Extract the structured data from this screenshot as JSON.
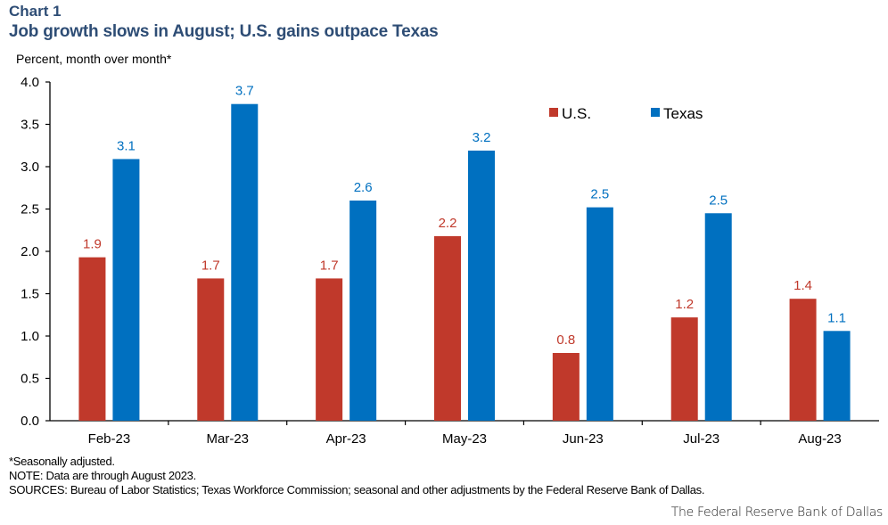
{
  "header": {
    "chart_label": "Chart 1",
    "title": "Job growth slows in August; U.S. gains outpace Texas",
    "unit_label": "Percent, month over month*"
  },
  "chart_data": {
    "type": "bar",
    "title": "Job growth slows in August; U.S. gains outpace Texas",
    "xlabel": "",
    "ylabel": "Percent, month over month*",
    "ylim": [
      0,
      4.0
    ],
    "yticks": [
      "0.0",
      "0.5",
      "1.0",
      "1.5",
      "2.0",
      "2.5",
      "3.0",
      "3.5",
      "4.0"
    ],
    "grid": false,
    "legend_position": "top-right",
    "categories": [
      "Feb-23",
      "Mar-23",
      "Apr-23",
      "May-23",
      "Jun-23",
      "Jul-23",
      "Aug-23"
    ],
    "series": [
      {
        "name": "U.S.",
        "color": "#c0392b",
        "values": [
          1.93,
          1.68,
          1.68,
          2.18,
          0.8,
          1.22,
          1.44
        ],
        "labels": [
          "1.9",
          "1.7",
          "1.7",
          "2.2",
          "0.8",
          "1.2",
          "1.4"
        ]
      },
      {
        "name": "Texas",
        "color": "#0070c0",
        "values": [
          3.09,
          3.74,
          2.6,
          3.19,
          2.52,
          2.45,
          1.06
        ],
        "labels": [
          "3.1",
          "3.7",
          "2.6",
          "3.2",
          "2.5",
          "2.5",
          "1.1"
        ]
      }
    ]
  },
  "footer": {
    "footnote": "*Seasonally adjusted.",
    "note": "NOTE: Data are through August 2023.",
    "sources": "SOURCES: Bureau of Labor Statistics; Texas Workforce Commission; seasonal and other adjustments by the Federal Reserve Bank of Dallas.",
    "credit": "The Federal Reserve Bank of Dallas"
  }
}
